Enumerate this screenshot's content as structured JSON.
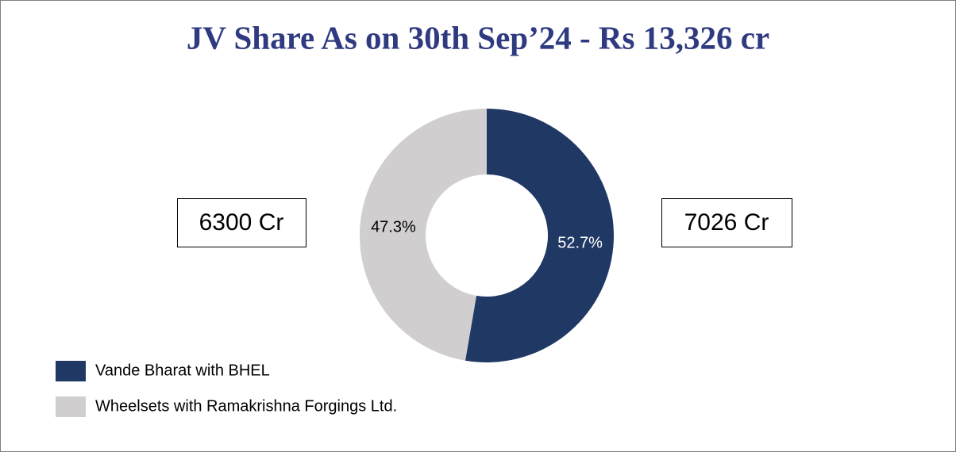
{
  "chart_data": {
    "type": "pie",
    "donut": true,
    "title": "JV Share As on 30th Sep’24 - Rs 13,326 cr",
    "categories": [
      "Vande Bharat with BHEL",
      "Wheelsets with Ramakrishna Forgings Ltd."
    ],
    "values": [
      52.7,
      47.3
    ],
    "value_labels": [
      "52.7%",
      "47.3%"
    ],
    "colors": [
      "#203864",
      "#d0cece"
    ],
    "label_colors": [
      "#ffffff",
      "#000000"
    ],
    "annotations": [
      "6300 Cr",
      "7026 Cr"
    ],
    "legend": "bottom-left"
  }
}
